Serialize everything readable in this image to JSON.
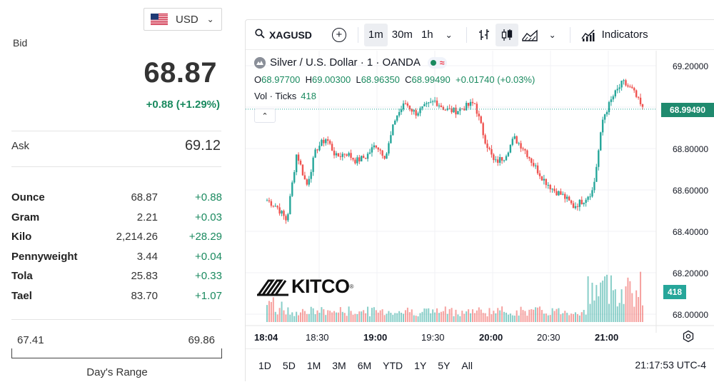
{
  "currency": {
    "code": "USD",
    "flag_icon": "us-flag-icon"
  },
  "quote": {
    "bid_label": "Bid",
    "bid_value": "68.87",
    "bid_change": "+0.88 (+1.29%)",
    "ask_label": "Ask",
    "ask_value": "69.12"
  },
  "units": [
    {
      "name": "Ounce",
      "price": "68.87",
      "change": "+0.88"
    },
    {
      "name": "Gram",
      "price": "2.21",
      "change": "+0.03"
    },
    {
      "name": "Kilo",
      "price": "2,214.26",
      "change": "+28.29"
    },
    {
      "name": "Pennyweight",
      "price": "3.44",
      "change": "+0.04"
    },
    {
      "name": "Tola",
      "price": "25.83",
      "change": "+0.33"
    },
    {
      "name": "Tael",
      "price": "83.70",
      "change": "+1.07"
    }
  ],
  "day_range": {
    "low": "67.41",
    "high": "69.86",
    "label": "Day's Range"
  },
  "toolbar": {
    "symbol": "XAGUSD",
    "intervals": [
      "1m",
      "30m",
      "1h"
    ],
    "active_interval": "1m",
    "indicators_label": "Indicators"
  },
  "legend": {
    "title": "Silver / U.S. Dollar · 1 · OANDA",
    "o_label": "O",
    "o_value": "68.97700",
    "h_label": "H",
    "h_value": "69.00300",
    "l_label": "L",
    "l_value": "68.96350",
    "c_label": "C",
    "c_value": "68.99490",
    "change": "+0.01740 (+0.03%)",
    "vol_label": "Vol · Ticks",
    "vol_value": "418"
  },
  "price_axis": [
    "69.20000",
    "69.00000",
    "68.80000",
    "68.60000",
    "68.40000",
    "68.20000",
    "68.00000"
  ],
  "last_price_tag": "68.99490",
  "volume_tag": "418",
  "time_axis": [
    {
      "label": "18:04",
      "bold": true
    },
    {
      "label": "18:30",
      "bold": false
    },
    {
      "label": "19:00",
      "bold": true
    },
    {
      "label": "19:30",
      "bold": false
    },
    {
      "label": "20:00",
      "bold": true
    },
    {
      "label": "20:30",
      "bold": false
    },
    {
      "label": "21:00",
      "bold": true
    }
  ],
  "ranges": [
    "1D",
    "5D",
    "1M",
    "3M",
    "6M",
    "YTD",
    "1Y",
    "5Y",
    "All"
  ],
  "clock": "21:17:53 UTC-4",
  "brand": {
    "name": "KITCO",
    "reg": "®"
  },
  "colors": {
    "up": "#26a69a",
    "down": "#ef5350",
    "green_text": "#1a8a5f"
  },
  "chart_data": {
    "type": "line",
    "title": "Silver / U.S. Dollar · 1 · OANDA",
    "xlabel": "",
    "ylabel": "",
    "ylim": [
      68.0,
      69.2
    ],
    "x": [
      "18:04",
      "18:10",
      "18:15",
      "18:20",
      "18:25",
      "18:30",
      "18:35",
      "18:40",
      "18:45",
      "18:50",
      "18:55",
      "19:00",
      "19:05",
      "19:10",
      "19:15",
      "19:20",
      "19:25",
      "19:30",
      "19:35",
      "19:40",
      "19:45",
      "19:50",
      "19:55",
      "20:00",
      "20:05",
      "20:10",
      "20:15",
      "20:20",
      "20:25",
      "20:30",
      "20:35",
      "20:40",
      "20:45",
      "20:50",
      "20:55",
      "21:00",
      "21:05",
      "21:10",
      "21:17"
    ],
    "series": [
      {
        "values": [
          68.55,
          68.52,
          68.45,
          68.78,
          68.62,
          68.8,
          68.85,
          68.76,
          68.78,
          68.74,
          68.76,
          68.82,
          68.76,
          68.95,
          69.02,
          68.97,
          69.0,
          69.03,
          68.99,
          68.98,
          69.0,
          69.02,
          68.85,
          68.73,
          68.76,
          68.85,
          68.8,
          68.72,
          68.65,
          68.6,
          68.57,
          68.52,
          68.55,
          68.6,
          68.95,
          69.05,
          69.12,
          69.08,
          68.99
        ]
      }
    ]
  }
}
